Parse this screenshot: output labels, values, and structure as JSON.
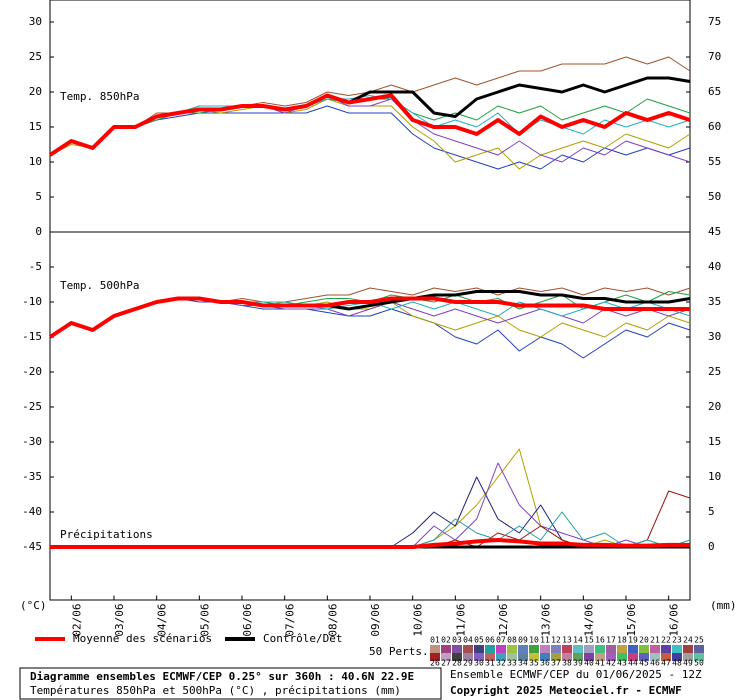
{
  "chart_data": {
    "type": "line",
    "title": "Diagramme ensembles ECMWF/CEP 0.25° sur 360h : 40.6N 22.9E",
    "subtitle": "Températures 850hPa et 500hPa (°C) , précipitations (mm)",
    "run_label": "Ensemble ECMWF/CEP du 01/06/2025 - 12Z",
    "copyright": "Copyright 2025 Meteociel.fr - ECMWF",
    "panel_labels": [
      "Temp. 850hPa",
      "Temp. 500hPa",
      "Précipitations"
    ],
    "ylabel": "(°C)",
    "y2label": "(mm)",
    "perts_label": "50 Perts.",
    "x": [
      0,
      12,
      24,
      36,
      48,
      60,
      72,
      84,
      96,
      108,
      120,
      132,
      144,
      156,
      168,
      180,
      192,
      204,
      216,
      228,
      240,
      252,
      264,
      276,
      288,
      300,
      312,
      324,
      336,
      348,
      360
    ],
    "xlim": [
      0,
      360
    ],
    "xticks": [
      {
        "value": 12,
        "label": "02/06"
      },
      {
        "value": 36,
        "label": "03/06"
      },
      {
        "value": 60,
        "label": "04/06"
      },
      {
        "value": 84,
        "label": "05/06"
      },
      {
        "value": 108,
        "label": "06/06"
      },
      {
        "value": 132,
        "label": "07/06"
      },
      {
        "value": 156,
        "label": "08/06"
      },
      {
        "value": 180,
        "label": "09/06"
      },
      {
        "value": 204,
        "label": "10/06"
      },
      {
        "value": 228,
        "label": "11/06"
      },
      {
        "value": 252,
        "label": "12/06"
      },
      {
        "value": 276,
        "label": "13/06"
      },
      {
        "value": 300,
        "label": "14/06"
      },
      {
        "value": 324,
        "label": "15/06"
      },
      {
        "value": 348,
        "label": "16/06"
      }
    ],
    "ylim": [
      -52.5,
      33
    ],
    "yticks": [
      30,
      25,
      20,
      15,
      10,
      5,
      0,
      -5,
      -10,
      -15,
      -20,
      -25,
      -30,
      -35,
      -40,
      -45
    ],
    "y2lim": [
      -7.5,
      78
    ],
    "y2ticks": [
      75,
      70,
      65,
      60,
      55,
      50,
      45,
      40,
      35,
      30,
      25,
      20,
      15,
      10,
      5,
      0
    ],
    "separator": 0,
    "series": [
      {
        "color": "#a0522d",
        "values": [
          11,
          13,
          12,
          15,
          15,
          17,
          17,
          18,
          18,
          18,
          18.5,
          18,
          18.5,
          20,
          19.5,
          20,
          21,
          20,
          21,
          22,
          21,
          22,
          23,
          23,
          24,
          24,
          24,
          25,
          24,
          25,
          23
        ]
      },
      {
        "color": "#2040c0",
        "values": [
          11,
          13,
          12,
          15,
          15,
          16,
          16.5,
          17,
          17,
          17,
          17,
          17,
          17,
          18,
          17,
          17,
          17,
          14,
          12,
          11,
          10,
          9,
          10,
          9,
          11,
          10,
          12,
          11,
          12,
          11,
          12
        ]
      },
      {
        "color": "#b0a000",
        "values": [
          11,
          12.5,
          12,
          15,
          15,
          16.5,
          17,
          17.5,
          17,
          17.5,
          18,
          17,
          17.5,
          19,
          18,
          18,
          18,
          15,
          13,
          10,
          11,
          12,
          9,
          11,
          12,
          13,
          12,
          14,
          13,
          12,
          14
        ]
      },
      {
        "color": "#20a040",
        "values": [
          11,
          13,
          12,
          15,
          15,
          16,
          17,
          17,
          17.5,
          18,
          18,
          17.5,
          18,
          19,
          18.5,
          19,
          19,
          17,
          16,
          17,
          16,
          18,
          17,
          18,
          16,
          17,
          18,
          17,
          19,
          18,
          17
        ]
      },
      {
        "color": "#8040c0",
        "values": [
          11,
          13,
          12,
          15,
          15,
          16.5,
          17,
          17.5,
          17.5,
          18,
          18,
          17,
          18,
          19.5,
          18,
          18,
          19,
          16,
          14,
          13,
          12,
          11,
          13,
          11,
          10,
          12,
          11,
          13,
          12,
          11,
          10
        ]
      },
      {
        "color": "#20b0c0",
        "values": [
          11,
          13,
          12,
          15,
          15,
          16.5,
          17,
          18,
          18,
          18,
          18,
          17.5,
          18,
          19,
          19,
          19.5,
          19,
          17,
          15,
          16,
          15,
          17,
          14,
          16,
          15,
          14,
          16,
          15,
          16,
          15,
          16
        ]
      },
      {
        "color": "#a0522d",
        "values": [
          -15,
          -13,
          -14,
          -12,
          -11,
          -10,
          -9.5,
          -9.5,
          -10,
          -9.5,
          -10,
          -10,
          -9.5,
          -9,
          -9,
          -8,
          -8.5,
          -9,
          -8,
          -8.5,
          -8,
          -9,
          -8,
          -8.5,
          -8,
          -9,
          -8,
          -8.5,
          -8,
          -9,
          -8
        ]
      },
      {
        "color": "#2040c0",
        "values": [
          -15,
          -13,
          -14,
          -12,
          -11,
          -10,
          -9.5,
          -10,
          -10,
          -10.5,
          -11,
          -11,
          -11,
          -11.5,
          -12,
          -12,
          -11,
          -12,
          -13,
          -15,
          -16,
          -14,
          -17,
          -15,
          -16,
          -18,
          -16,
          -14,
          -15,
          -13,
          -14
        ]
      },
      {
        "color": "#b0a000",
        "values": [
          -15,
          -13,
          -14,
          -12,
          -11,
          -10,
          -9.5,
          -9.5,
          -10,
          -10,
          -10.5,
          -10,
          -10.5,
          -10,
          -11,
          -11,
          -10,
          -12,
          -13,
          -14,
          -13,
          -12,
          -14,
          -15,
          -13,
          -14,
          -15,
          -13,
          -14,
          -12,
          -13
        ]
      },
      {
        "color": "#20a040",
        "values": [
          -15,
          -13,
          -14,
          -12,
          -11,
          -10,
          -9.5,
          -9.5,
          -10,
          -10,
          -10,
          -10.5,
          -10,
          -9.5,
          -9.5,
          -10,
          -9,
          -9.5,
          -10,
          -9,
          -10,
          -9.5,
          -11,
          -10,
          -9,
          -11,
          -10,
          -9,
          -10,
          -8.5,
          -9
        ]
      },
      {
        "color": "#8040c0",
        "values": [
          -15,
          -13,
          -14,
          -12,
          -11,
          -10,
          -9.5,
          -9.5,
          -10,
          -10.5,
          -10.5,
          -11,
          -11,
          -11,
          -12,
          -11,
          -10,
          -11,
          -12,
          -11,
          -12,
          -13,
          -12,
          -11,
          -12,
          -13,
          -11,
          -12,
          -11,
          -12,
          -11
        ]
      },
      {
        "color": "#20b0c0",
        "values": [
          -15,
          -13,
          -14,
          -12,
          -11,
          -10,
          -9.5,
          -9.5,
          -10,
          -10,
          -10,
          -10,
          -10.5,
          -11,
          -10.5,
          -10,
          -11,
          -10,
          -11,
          -10,
          -11,
          -12,
          -10,
          -11,
          -12,
          -11,
          -10,
          -11,
          -10,
          -11,
          -12
        ]
      },
      {
        "color": "#b0a000",
        "axis": "y2",
        "values": [
          0,
          0,
          0,
          0,
          0,
          0,
          0,
          0,
          0,
          0,
          0,
          0,
          0,
          0,
          0,
          0,
          0,
          0,
          1,
          3,
          6,
          10,
          14,
          3,
          1,
          0,
          1,
          0,
          0,
          0,
          0
        ]
      },
      {
        "color": "#202080",
        "axis": "y2",
        "values": [
          0,
          0,
          0,
          0,
          0,
          0,
          0,
          0,
          0,
          0,
          0,
          0,
          0,
          0,
          0,
          0,
          0,
          2,
          5,
          3,
          10,
          4,
          2,
          6,
          1,
          0,
          0,
          0,
          0,
          0,
          0
        ]
      },
      {
        "color": "#8040c0",
        "axis": "y2",
        "values": [
          0,
          0,
          0,
          0,
          0,
          0,
          0,
          0,
          0,
          0,
          0,
          0,
          0,
          0,
          0,
          0,
          0,
          0,
          3,
          1,
          4,
          12,
          6,
          3,
          2,
          1,
          0,
          1,
          0,
          0,
          0
        ]
      },
      {
        "color": "#a01010",
        "axis": "y2",
        "values": [
          0,
          0,
          0,
          0,
          0,
          0,
          0,
          0,
          0,
          0,
          0,
          0,
          0,
          0,
          0,
          0,
          0,
          0,
          0,
          1,
          0,
          2,
          1,
          3,
          1,
          0,
          0,
          0,
          1,
          8,
          7
        ]
      },
      {
        "color": "#20a0a0",
        "axis": "y2",
        "values": [
          0,
          0,
          0,
          0,
          0,
          0,
          0,
          0,
          0,
          0,
          0,
          0,
          0,
          0,
          0,
          0,
          0,
          0,
          1,
          4,
          2,
          1,
          3,
          1,
          5,
          1,
          2,
          0,
          1,
          0,
          1
        ]
      },
      {
        "color": "#000000",
        "width": 3,
        "values": [
          11,
          13,
          12,
          15,
          15,
          16.5,
          17,
          17.5,
          17.5,
          18,
          18,
          17.5,
          18,
          19.5,
          18.5,
          20,
          20,
          20,
          17,
          16.5,
          19,
          20,
          21,
          20.5,
          20,
          21,
          20,
          21,
          22,
          22,
          21.5
        ]
      },
      {
        "color": "#000000",
        "width": 3,
        "values": [
          -15,
          -13,
          -14,
          -12,
          -11,
          -10,
          -9.5,
          -9.5,
          -10,
          -10,
          -10.5,
          -10.5,
          -10.5,
          -10.5,
          -11,
          -10.5,
          -10,
          -9.5,
          -9,
          -9,
          -8.5,
          -8.5,
          -8.5,
          -9,
          -9,
          -9.5,
          -9.5,
          -10,
          -10,
          -10,
          -9.5
        ]
      },
      {
        "name": "Contrôle/Det",
        "color": "#000000",
        "width": 3,
        "axis": "y2",
        "values": [
          0,
          0,
          0,
          0,
          0,
          0,
          0,
          0,
          0,
          0,
          0,
          0,
          0,
          0,
          0,
          0,
          0,
          0,
          0,
          0,
          0,
          0,
          0,
          0,
          0,
          0,
          0,
          0,
          0,
          0,
          0
        ]
      },
      {
        "color": "#ff0000",
        "width": 4,
        "values": [
          11,
          13,
          12,
          15,
          15,
          16.5,
          17,
          17.5,
          17.5,
          18,
          18,
          17.5,
          18,
          19.5,
          18.5,
          19,
          19.5,
          16,
          15,
          15,
          14,
          16,
          14,
          16.5,
          15,
          16,
          15,
          17,
          16,
          17,
          16
        ]
      },
      {
        "color": "#ff0000",
        "width": 4,
        "values": [
          -15,
          -13,
          -14,
          -12,
          -11,
          -10,
          -9.5,
          -9.5,
          -10,
          -10,
          -10.5,
          -10.5,
          -10.5,
          -10.5,
          -10,
          -10,
          -9.5,
          -9.5,
          -9.5,
          -10,
          -10,
          -10,
          -10.5,
          -10.5,
          -10.5,
          -10.5,
          -11,
          -11,
          -11,
          -11,
          -11
        ]
      },
      {
        "name": "Moyenne des scénarios",
        "color": "#ff0000",
        "width": 4,
        "axis": "y2",
        "values": [
          0,
          0,
          0,
          0,
          0,
          0,
          0,
          0,
          0,
          0,
          0,
          0,
          0,
          0,
          0,
          0,
          0,
          0,
          0.3,
          0.5,
          0.8,
          1,
          0.8,
          0.5,
          0.5,
          0.3,
          0.3,
          0.2,
          0.2,
          0.3,
          0.3
        ]
      }
    ],
    "perturbations": [
      {
        "label": "01",
        "color": "#c09080"
      },
      {
        "label": "02",
        "color": "#a04080"
      },
      {
        "label": "03",
        "color": "#8050a0"
      },
      {
        "label": "04",
        "color": "#a05050"
      },
      {
        "label": "05",
        "color": "#404080"
      },
      {
        "label": "06",
        "color": "#20a0a0"
      },
      {
        "label": "07",
        "color": "#c040c0"
      },
      {
        "label": "08",
        "color": "#a0c040"
      },
      {
        "label": "09",
        "color": "#6080c0"
      },
      {
        "label": "10",
        "color": "#40a040"
      },
      {
        "label": "11",
        "color": "#c080c0"
      },
      {
        "label": "12",
        "color": "#8080c0"
      },
      {
        "label": "13",
        "color": "#c04060"
      },
      {
        "label": "14",
        "color": "#60c0c0"
      },
      {
        "label": "15",
        "color": "#a0a0c0"
      },
      {
        "label": "16",
        "color": "#40c080"
      },
      {
        "label": "17",
        "color": "#a060a0"
      },
      {
        "label": "18",
        "color": "#c0a040"
      },
      {
        "label": "19",
        "color": "#4060c0"
      },
      {
        "label": "20",
        "color": "#80c040"
      },
      {
        "label": "21",
        "color": "#c060a0"
      },
      {
        "label": "22",
        "color": "#6040a0"
      },
      {
        "label": "23",
        "color": "#40c0c0"
      },
      {
        "label": "24",
        "color": "#a04040"
      },
      {
        "label": "25",
        "color": "#6060a0"
      },
      {
        "label": "26",
        "color": "#a02020"
      },
      {
        "label": "27",
        "color": "#c0a0c0"
      },
      {
        "label": "28",
        "color": "#404040"
      },
      {
        "label": "29",
        "color": "#a080a0"
      },
      {
        "label": "30",
        "color": "#8060c0"
      },
      {
        "label": "31",
        "color": "#c06060"
      },
      {
        "label": "32",
        "color": "#40a0c0"
      },
      {
        "label": "33",
        "color": "#a0c0a0"
      },
      {
        "label": "34",
        "color": "#6080a0"
      },
      {
        "label": "35",
        "color": "#c0c040"
      },
      {
        "label": "36",
        "color": "#4080c0"
      },
      {
        "label": "37",
        "color": "#a0a040"
      },
      {
        "label": "38",
        "color": "#c080a0"
      },
      {
        "label": "39",
        "color": "#60a060"
      },
      {
        "label": "40",
        "color": "#8040a0"
      },
      {
        "label": "41",
        "color": "#c0a080"
      },
      {
        "label": "42",
        "color": "#a060c0"
      },
      {
        "label": "43",
        "color": "#40c060"
      },
      {
        "label": "44",
        "color": "#c04080"
      },
      {
        "label": "45",
        "color": "#6060c0"
      },
      {
        "label": "46",
        "color": "#a0c0c0"
      },
      {
        "label": "47",
        "color": "#c06040"
      },
      {
        "label": "48",
        "color": "#4040a0"
      },
      {
        "label": "49",
        "color": "#a0a0a0"
      },
      {
        "label": "50",
        "color": "#60c0a0"
      }
    ]
  }
}
